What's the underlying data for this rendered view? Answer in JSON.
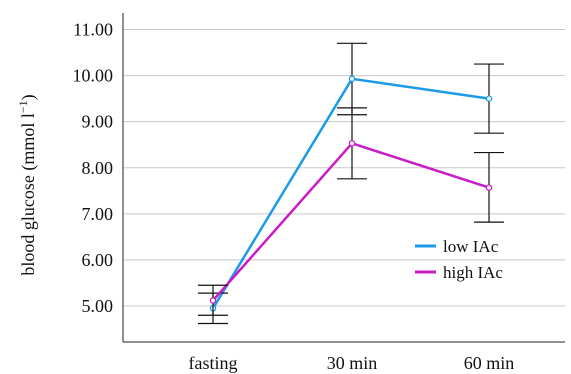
{
  "chart_data": {
    "type": "line",
    "categories": [
      "fasting",
      "30 min",
      "60 min"
    ],
    "ylabel": "blood glucose (mmol l",
    "ylabel_sup": "−1",
    "ylabel_close": ")",
    "ylim": [
      4.3,
      11.4
    ],
    "yticks": [
      "5.00",
      "6.00",
      "7.00",
      "8.00",
      "9.00",
      "10.00",
      "11.00"
    ],
    "grid": true,
    "legend_position": "right",
    "series": [
      {
        "name": "low IAc",
        "color": "#1a9bea",
        "values": [
          4.95,
          9.93,
          9.5
        ],
        "err_low": [
          4.62,
          9.15,
          8.75
        ],
        "err_high": [
          5.28,
          10.7,
          10.25
        ]
      },
      {
        "name": "high IAc",
        "color": "#c91bc7",
        "values": [
          5.12,
          8.53,
          7.57
        ],
        "err_low": [
          4.8,
          7.76,
          6.82
        ],
        "err_high": [
          5.45,
          9.3,
          8.33
        ]
      }
    ]
  }
}
